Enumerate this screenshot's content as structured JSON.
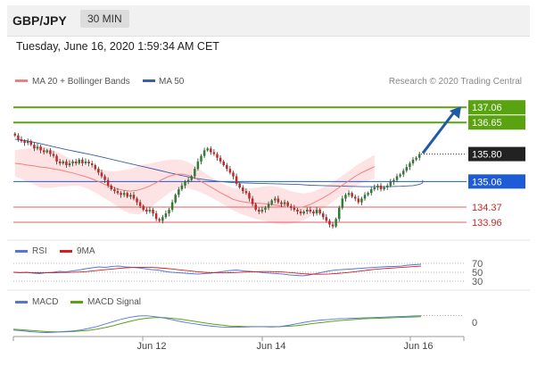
{
  "header": {
    "symbol": "GBP/JPY",
    "interval": "30 MIN",
    "timestamp": "Tuesday, June 16, 2020 1:59:34 AM CET"
  },
  "legend": {
    "ma20_label": "MA 20 + Bollinger Bands",
    "ma50_label": "MA 50",
    "rsi_label": "RSI",
    "rsi_ma_label": "9MA",
    "macd_label": "MACD",
    "macd_signal_label": "MACD Signal",
    "credit": "Research © 2020 Trading Central"
  },
  "colors": {
    "bull": "#2e7d32",
    "bear": "#c62828",
    "ma20": "#f08080",
    "ma50": "#3b5ea8",
    "band_fill": "#fde3e3",
    "resistance": "#5aa310",
    "support_red": "#e06060",
    "support_blue": "#1e5bd6",
    "arrow": "#1f5aa6",
    "current_price_bg": "#222222",
    "rsi": "#5577dd",
    "rsi_ma": "#d41f1f",
    "macd": "#5577dd",
    "macd_signal": "#5aa310"
  },
  "chart_data": {
    "type": "candlestick",
    "x_labels": [
      "Jun 12",
      "Jun 14",
      "Jun 16"
    ],
    "ylim": [
      133.6,
      137.45
    ],
    "current_price": "135.80",
    "levels": [
      {
        "value": 137.06,
        "label": "137.06",
        "style": "resistance",
        "kind": "box"
      },
      {
        "value": 136.65,
        "label": "136.65",
        "style": "resistance",
        "kind": "box"
      },
      {
        "value": 135.06,
        "label": "135.06",
        "style": "support_blue",
        "kind": "box"
      },
      {
        "value": 134.37,
        "label": "134.37",
        "style": "support_red",
        "kind": "text"
      },
      {
        "value": 133.96,
        "label": "133.96",
        "style": "support_red",
        "kind": "text"
      }
    ],
    "close": [
      136.3,
      136.2,
      136.15,
      136.1,
      136.15,
      136.05,
      135.95,
      136.0,
      135.9,
      135.85,
      135.9,
      135.8,
      135.75,
      135.6,
      135.55,
      135.6,
      135.5,
      135.55,
      135.6,
      135.55,
      135.65,
      135.55,
      135.6,
      135.55,
      135.5,
      135.4,
      135.3,
      135.2,
      135.1,
      134.95,
      134.85,
      134.8,
      134.75,
      134.7,
      134.75,
      134.65,
      134.7,
      134.6,
      134.5,
      134.4,
      134.3,
      134.25,
      134.3,
      134.2,
      134.05,
      134.0,
      134.1,
      134.2,
      134.3,
      134.5,
      134.7,
      134.85,
      134.95,
      135.05,
      135.1,
      135.2,
      135.4,
      135.6,
      135.75,
      135.9,
      135.95,
      135.85,
      135.8,
      135.7,
      135.6,
      135.5,
      135.4,
      135.3,
      135.2,
      135.0,
      134.9,
      134.8,
      134.75,
      134.6,
      134.45,
      134.3,
      134.25,
      134.3,
      134.35,
      134.45,
      134.55,
      134.6,
      134.5,
      134.45,
      134.5,
      134.4,
      134.35,
      134.3,
      134.25,
      134.2,
      134.25,
      134.3,
      134.25,
      134.2,
      134.3,
      134.2,
      134.1,
      134.0,
      133.9,
      133.85,
      134.05,
      134.35,
      134.6,
      134.7,
      134.75,
      134.65,
      134.6,
      134.5,
      134.6,
      134.7,
      134.75,
      134.85,
      134.9,
      134.95,
      134.85,
      134.9,
      134.95,
      135.05,
      135.1,
      135.2,
      135.25,
      135.35,
      135.45,
      135.55,
      135.65,
      135.7,
      135.8
    ],
    "ma20": [
      135.55,
      135.53,
      135.5,
      135.48,
      135.45,
      135.43,
      135.4,
      135.37,
      135.33,
      135.29,
      135.24,
      135.19,
      135.13,
      135.06,
      134.98,
      134.92,
      134.86,
      134.82,
      134.8,
      134.82,
      134.87,
      134.94,
      135.03,
      135.12,
      135.2,
      135.25,
      135.26,
      135.23,
      135.16,
      135.06,
      134.96,
      134.86,
      134.76,
      134.67,
      134.58,
      134.53,
      134.5,
      134.48,
      134.47,
      134.46,
      134.44,
      134.41,
      134.38,
      134.36,
      134.36,
      134.38,
      134.44,
      134.53,
      134.62,
      134.72,
      134.84,
      134.96,
      135.08,
      135.2,
      135.3,
      135.38,
      135.46
    ],
    "ma20_x": [
      0,
      2,
      4,
      6,
      8,
      10,
      12,
      14,
      16,
      18,
      20,
      22,
      24,
      26,
      28,
      30,
      32,
      34,
      36,
      38,
      40,
      42,
      44,
      46,
      48,
      50,
      52,
      54,
      56,
      58,
      60,
      62,
      64,
      66,
      68,
      70,
      72,
      74,
      76,
      78,
      80,
      82,
      84,
      86,
      88,
      90,
      92,
      94,
      96,
      98,
      100,
      102,
      104,
      106,
      108,
      110,
      112
    ],
    "ma50": [
      136.2,
      136.15,
      136.08,
      136.0,
      135.92,
      135.85,
      135.78,
      135.7,
      135.62,
      135.54,
      135.46,
      135.38,
      135.3,
      135.22,
      135.15,
      135.1,
      135.06,
      135.03,
      135.02,
      135.01,
      135.0,
      134.99,
      134.98,
      134.96,
      134.95,
      134.94,
      134.93,
      134.92,
      134.92,
      134.92,
      134.93,
      134.95,
      134.98,
      135.02,
      135.06,
      135.1
    ],
    "ma50_x": [
      0,
      4,
      8,
      12,
      16,
      20,
      24,
      28,
      32,
      36,
      40,
      44,
      48,
      52,
      56,
      60,
      64,
      68,
      72,
      76,
      80,
      84,
      88,
      92,
      96,
      100,
      104,
      108,
      112,
      116,
      120,
      124,
      126,
      127,
      127,
      127
    ],
    "band_width": [
      0.35,
      0.4,
      0.45,
      0.5,
      0.55,
      0.55,
      0.5,
      0.45,
      0.4,
      0.35,
      0.3,
      0.3,
      0.32,
      0.35,
      0.38,
      0.42,
      0.48,
      0.55,
      0.6,
      0.65,
      0.65,
      0.6,
      0.55,
      0.5,
      0.45,
      0.4,
      0.38,
      0.35,
      0.33,
      0.3,
      0.28,
      0.27,
      0.27,
      0.28,
      0.3,
      0.33,
      0.36,
      0.4,
      0.44,
      0.47,
      0.5,
      0.5,
      0.48,
      0.44,
      0.4,
      0.36,
      0.32,
      0.3,
      0.28,
      0.27,
      0.26,
      0.26,
      0.26,
      0.27,
      0.28,
      0.3,
      0.32
    ],
    "forecast": {
      "from": 135.8,
      "to": 137.06
    },
    "rsi": {
      "levels": [
        "70",
        "50",
        "30"
      ],
      "values": [
        50,
        49,
        50,
        48,
        47,
        49,
        50,
        52,
        51,
        53,
        55,
        58,
        60,
        62,
        61,
        63,
        64,
        62,
        61,
        60,
        58,
        56,
        55,
        52,
        50,
        49,
        48,
        47,
        46,
        47,
        48,
        50,
        52,
        54,
        55,
        53,
        52,
        51,
        49,
        48,
        47,
        46,
        44,
        43,
        42,
        44,
        47,
        50,
        53,
        55,
        56,
        57,
        58,
        59,
        60,
        61,
        62,
        63,
        63,
        64,
        66,
        67,
        68
      ]
    },
    "macd": {
      "levels": [
        "0"
      ],
      "values": [
        -0.25,
        -0.27,
        -0.3,
        -0.32,
        -0.33,
        -0.32,
        -0.3,
        -0.28,
        -0.25,
        -0.2,
        -0.14,
        -0.06,
        0.02,
        0.1,
        0.16,
        0.2,
        0.21,
        0.18,
        0.14,
        0.09,
        0.03,
        -0.02,
        -0.06,
        -0.1,
        -0.13,
        -0.15,
        -0.16,
        -0.16,
        -0.15,
        -0.14,
        -0.14,
        -0.15,
        -0.14,
        -0.1,
        -0.05,
        0.0,
        0.04,
        0.07,
        0.09,
        0.11,
        0.12,
        0.13,
        0.14,
        0.15,
        0.16,
        0.17,
        0.18,
        0.19,
        0.2,
        0.21
      ],
      "signal": [
        -0.22,
        -0.24,
        -0.26,
        -0.28,
        -0.3,
        -0.31,
        -0.31,
        -0.3,
        -0.28,
        -0.26,
        -0.22,
        -0.17,
        -0.11,
        -0.04,
        0.03,
        0.09,
        0.13,
        0.15,
        0.15,
        0.13,
        0.1,
        0.06,
        0.02,
        -0.02,
        -0.06,
        -0.09,
        -0.12,
        -0.13,
        -0.14,
        -0.14,
        -0.14,
        -0.14,
        -0.14,
        -0.13,
        -0.11,
        -0.08,
        -0.04,
        -0.01,
        0.02,
        0.05,
        0.07,
        0.09,
        0.11,
        0.12,
        0.13,
        0.14,
        0.15,
        0.16,
        0.17,
        0.18
      ]
    }
  }
}
